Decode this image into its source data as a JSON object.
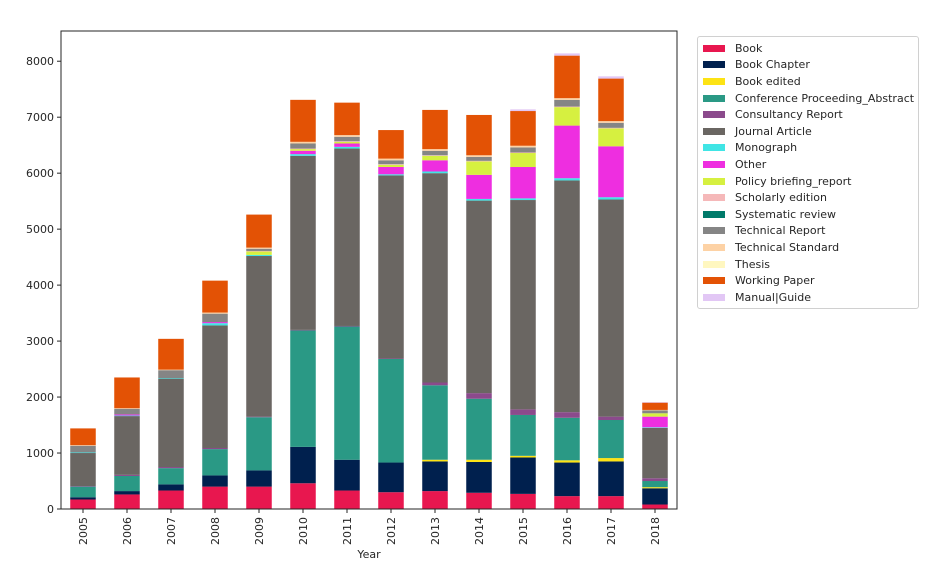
{
  "chart_data": {
    "type": "bar",
    "stacked": true,
    "title": "",
    "xlabel": "Year",
    "ylabel": "",
    "ylim": [
      0,
      8540
    ],
    "yticks": [
      0,
      1000,
      2000,
      3000,
      4000,
      5000,
      6000,
      7000,
      8000
    ],
    "grid": false,
    "legend_position": "outside-right",
    "categories": [
      "2005",
      "2006",
      "2007",
      "2008",
      "2009",
      "2010",
      "2011",
      "2012",
      "2013",
      "2014",
      "2015",
      "2016",
      "2017",
      "2018"
    ],
    "series": [
      {
        "name": "Book",
        "color": "#e8174f",
        "values": [
          170,
          260,
          330,
          400,
          400,
          460,
          330,
          300,
          320,
          290,
          270,
          230,
          230,
          80
        ]
      },
      {
        "name": "Book Chapter",
        "color": "#00204e",
        "values": [
          40,
          60,
          110,
          200,
          290,
          650,
          550,
          530,
          530,
          550,
          650,
          600,
          620,
          290
        ]
      },
      {
        "name": "Book edited",
        "color": "#fde314",
        "values": [
          0,
          0,
          0,
          0,
          0,
          0,
          0,
          0,
          30,
          40,
          30,
          40,
          60,
          20
        ]
      },
      {
        "name": "Conference Proceeding_Abstract",
        "color": "#2a9985",
        "values": [
          190,
          270,
          290,
          470,
          950,
          2080,
          2380,
          1850,
          1330,
          1090,
          730,
          760,
          680,
          110
        ]
      },
      {
        "name": "Consultancy Report",
        "color": "#8b4a8c",
        "values": [
          10,
          20,
          20,
          20,
          10,
          10,
          10,
          10,
          50,
          100,
          100,
          100,
          60,
          50
        ]
      },
      {
        "name": "Journal Article",
        "color": "#6a6662",
        "values": [
          590,
          1050,
          1580,
          2190,
          2870,
          3110,
          3170,
          3270,
          3740,
          3440,
          3740,
          4140,
          3880,
          900
        ]
      },
      {
        "name": "Monograph",
        "color": "#40e5e5",
        "values": [
          10,
          10,
          10,
          40,
          20,
          30,
          30,
          20,
          30,
          30,
          30,
          40,
          40,
          10
        ]
      },
      {
        "name": "Other",
        "color": "#ee2ee0",
        "values": [
          0,
          20,
          0,
          20,
          0,
          60,
          60,
          130,
          200,
          430,
          560,
          940,
          910,
          190
        ]
      },
      {
        "name": "Policy briefing_report",
        "color": "#d6f040",
        "values": [
          0,
          0,
          0,
          0,
          60,
          30,
          30,
          40,
          80,
          240,
          250,
          330,
          320,
          60
        ]
      },
      {
        "name": "Scholarly edition",
        "color": "#f5b8b9",
        "values": [
          0,
          0,
          0,
          0,
          10,
          10,
          10,
          10,
          10,
          10,
          10,
          10,
          10,
          0
        ]
      },
      {
        "name": "Systematic review",
        "color": "#007a6a",
        "values": [
          0,
          0,
          0,
          0,
          0,
          0,
          0,
          0,
          0,
          0,
          0,
          0,
          0,
          0
        ]
      },
      {
        "name": "Technical Report",
        "color": "#858585",
        "values": [
          120,
          100,
          140,
          150,
          40,
          90,
          80,
          70,
          80,
          70,
          90,
          120,
          90,
          50
        ]
      },
      {
        "name": "Technical Standard",
        "color": "#fdd2a5",
        "values": [
          10,
          10,
          10,
          20,
          20,
          30,
          30,
          30,
          30,
          30,
          30,
          30,
          30,
          10
        ]
      },
      {
        "name": "Thesis",
        "color": "#fff7c0",
        "values": [
          0,
          0,
          0,
          0,
          0,
          0,
          0,
          0,
          0,
          0,
          0,
          0,
          0,
          0
        ]
      },
      {
        "name": "Working Paper",
        "color": "#e35205",
        "values": [
          300,
          550,
          550,
          570,
          590,
          750,
          580,
          510,
          700,
          720,
          620,
          760,
          760,
          130
        ]
      },
      {
        "name": "Manual|Guide",
        "color": "#e2c7f5",
        "values": [
          0,
          0,
          0,
          0,
          0,
          0,
          0,
          0,
          0,
          0,
          30,
          40,
          40,
          10
        ]
      }
    ]
  }
}
